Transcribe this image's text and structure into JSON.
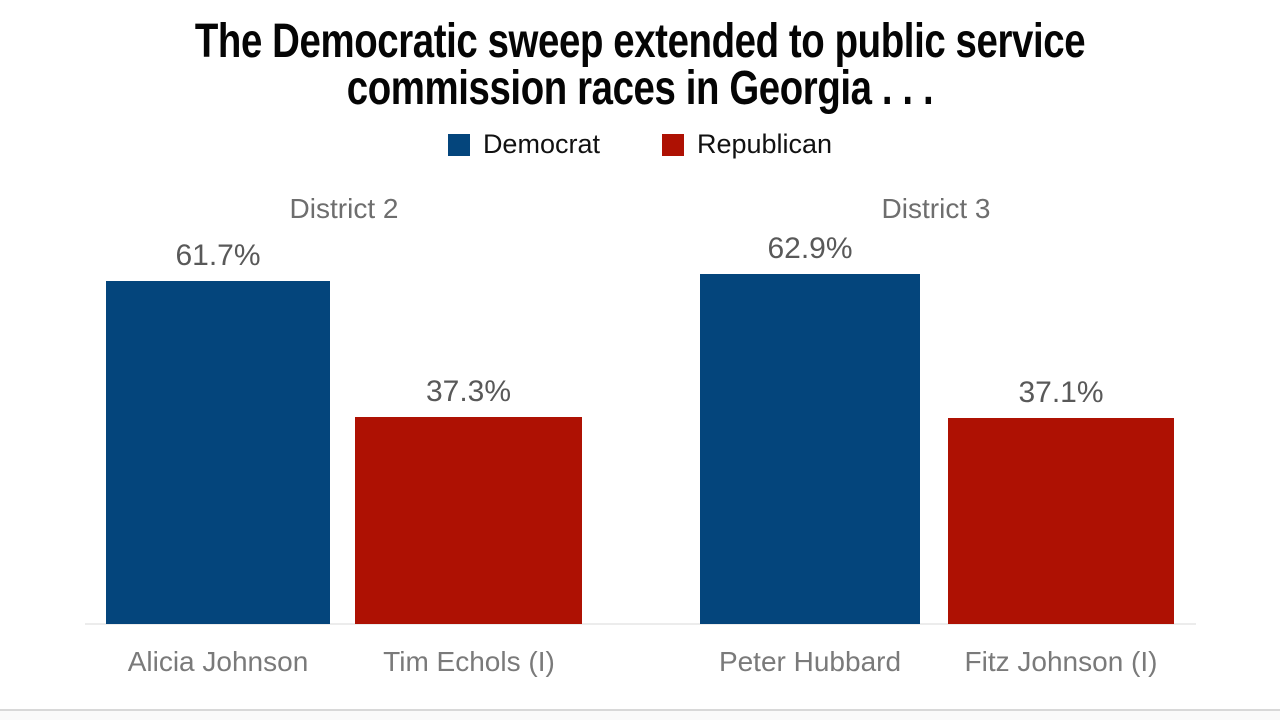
{
  "title": {
    "line1": "The Democratic sweep extended to public service",
    "line2": "commission races in Georgia . . ."
  },
  "legend": {
    "items": [
      {
        "label": "Democrat",
        "color": "#04457C"
      },
      {
        "label": "Republican",
        "color": "#AE1103"
      }
    ]
  },
  "colors": {
    "democrat": "#04457C",
    "republican": "#AE1103",
    "title_text": "#050505",
    "district_text": "#6e6e6e",
    "value_text": "#595959",
    "name_text": "#7a7a7a",
    "baseline": "#ececec",
    "bottom_divider": "#d8d8d8"
  },
  "chart_data": {
    "type": "bar",
    "title": "The Democratic sweep extended to public service commission races in Georgia . . .",
    "unit": "percent",
    "ylim": [
      0,
      65
    ],
    "grid": false,
    "legend_position": "top-center",
    "legend": [
      "Democrat",
      "Republican"
    ],
    "panels": [
      {
        "district": "District 2",
        "bars": [
          {
            "candidate": "Alicia Johnson",
            "party": "Democrat",
            "value": 61.7,
            "label": "61.7%",
            "color": "#04457C"
          },
          {
            "candidate": "Tim Echols (I)",
            "party": "Republican",
            "value": 37.3,
            "label": "37.3%",
            "color": "#AE1103"
          }
        ]
      },
      {
        "district": "District 3",
        "bars": [
          {
            "candidate": "Peter Hubbard",
            "party": "Democrat",
            "value": 62.9,
            "label": "62.9%",
            "color": "#04457C"
          },
          {
            "candidate": "Fitz Johnson (I)",
            "party": "Republican",
            "value": 37.1,
            "label": "37.1%",
            "color": "#AE1103"
          }
        ]
      }
    ]
  }
}
